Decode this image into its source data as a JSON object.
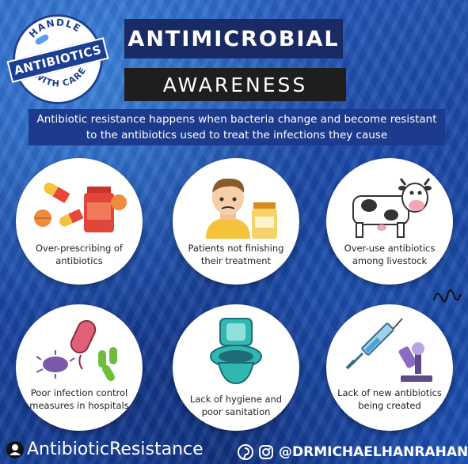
{
  "badge": {
    "top_text": "HANDLE",
    "banner_text": "ANTIBIOTICS",
    "bottom_text": "WITH CARE"
  },
  "title": "ANTIMICROBIAL",
  "subtitle": "AWARENESS",
  "intro": "Antibiotic resistance happens when bacteria change and become resistant to the antibiotics used to treat the infections they cause",
  "causes": [
    {
      "label": "Over-prescribing of antibiotics",
      "icon": "pills-bottle-icon"
    },
    {
      "label": "Patients not finishing their treatment",
      "icon": "patient-with-pills-icon"
    },
    {
      "label": "Over-use antibiotics among livestock",
      "icon": "cow-icon"
    },
    {
      "label": "Poor infection control measures in hospitals",
      "icon": "bacteria-icon"
    },
    {
      "label": "Lack of hygiene and poor sanitation",
      "icon": "toilet-icon"
    },
    {
      "label": "Lack of new antibiotics being created",
      "icon": "syringe-microscope-icon"
    }
  ],
  "footer": {
    "hashtag": "AntibioticResistance",
    "handle": "@DRMICHAELHANRAHAN",
    "icons": [
      "user-icon",
      "pinterest-icon",
      "instagram-icon"
    ]
  },
  "colors": {
    "navy": "#1a2b63",
    "dark": "#1e1e1e",
    "banner": "#1c3f93",
    "pill_red": "#e8463c",
    "pill_yellow": "#f5c33b"
  }
}
